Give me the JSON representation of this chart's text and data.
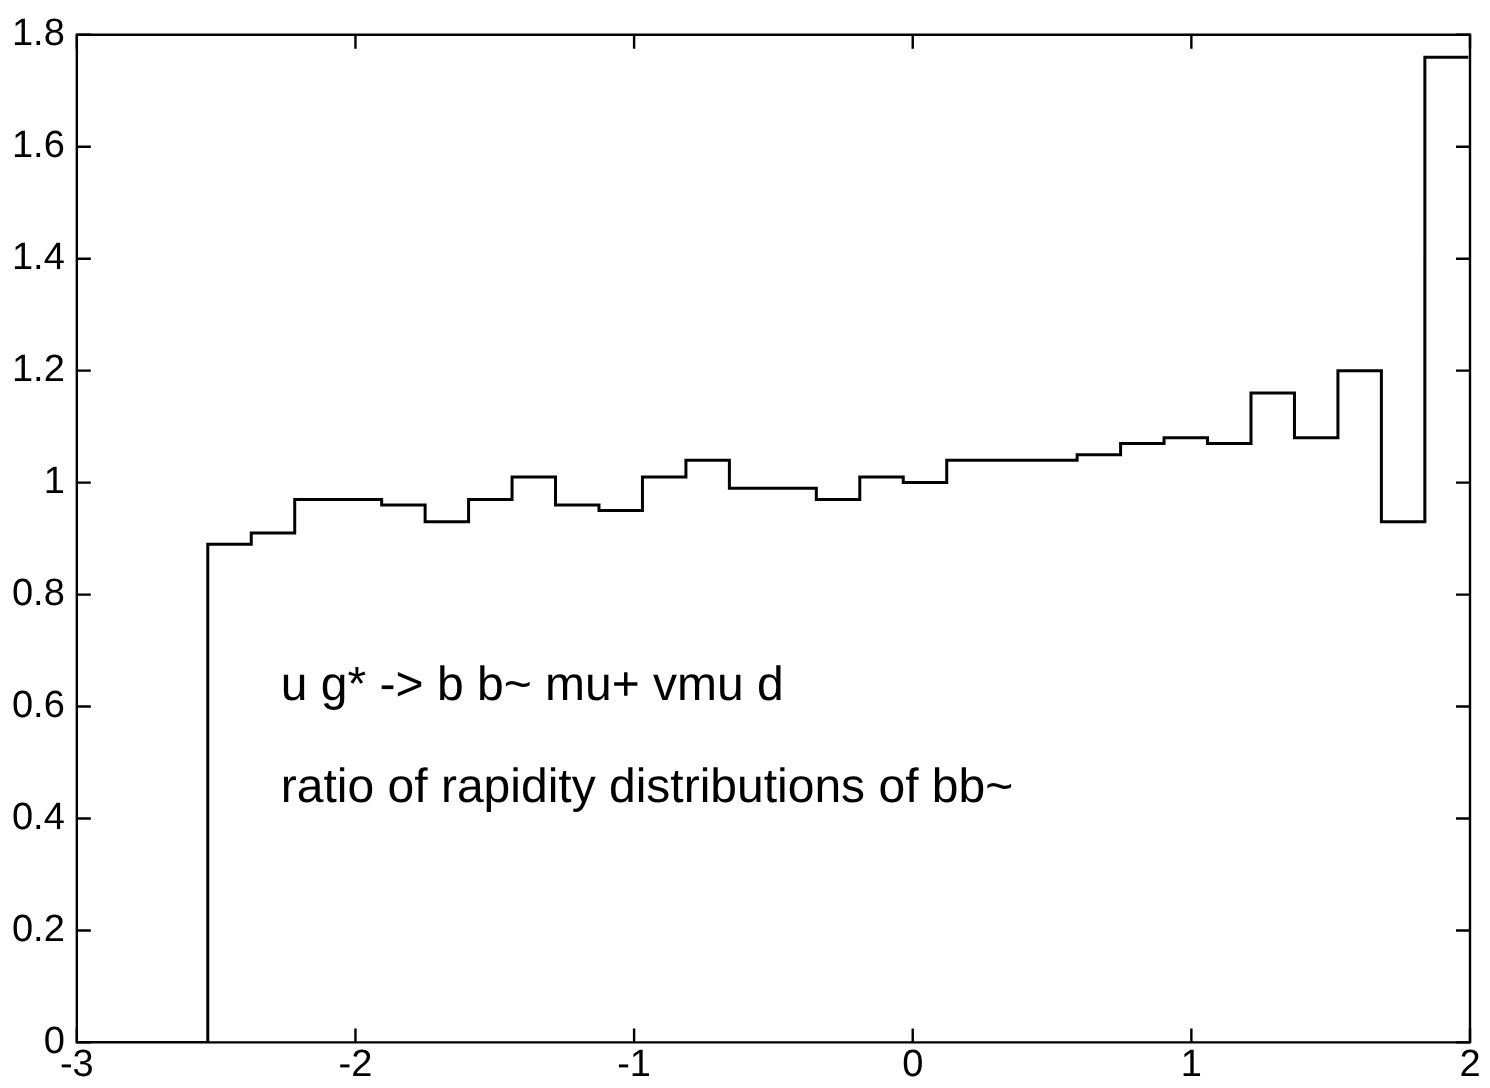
{
  "chart_data": {
    "type": "histogram",
    "bins": [
      -3,
      -2.53,
      -2.374,
      -2.218,
      -2.062,
      -1.906,
      -1.75,
      -1.594,
      -1.438,
      -1.282,
      -1.126,
      -0.97,
      -0.814,
      -0.658,
      -0.502,
      -0.346,
      -0.19,
      -0.034,
      0.122,
      0.278,
      0.434,
      0.59,
      0.746,
      0.902,
      1.058,
      1.214,
      1.37,
      1.526,
      1.682,
      1.838,
      1.994
    ],
    "values": [
      0,
      0.89,
      0.91,
      0.97,
      0.97,
      0.96,
      0.93,
      0.97,
      1.01,
      0.96,
      0.95,
      1.01,
      1.04,
      0.99,
      0.99,
      0.97,
      1.01,
      1.0,
      1.04,
      1.04,
      1.04,
      1.05,
      1.07,
      1.08,
      1.07,
      1.16,
      1.08,
      1.2,
      0.93,
      1.76
    ],
    "color": "#000000",
    "xlim": [
      -3,
      2
    ],
    "xticks": [
      -3,
      -2,
      -1,
      0,
      1,
      2
    ],
    "ylim": [
      0,
      1.8
    ],
    "yticks": [
      0,
      0.2,
      0.4,
      0.6,
      0.8,
      1,
      1.2,
      1.4,
      1.6,
      1.8
    ],
    "annotations": [
      "u g* -> b b~ mu+ vmu d",
      "ratio of rapidity distributions of bb~"
    ],
    "grid": false,
    "legend": false
  }
}
